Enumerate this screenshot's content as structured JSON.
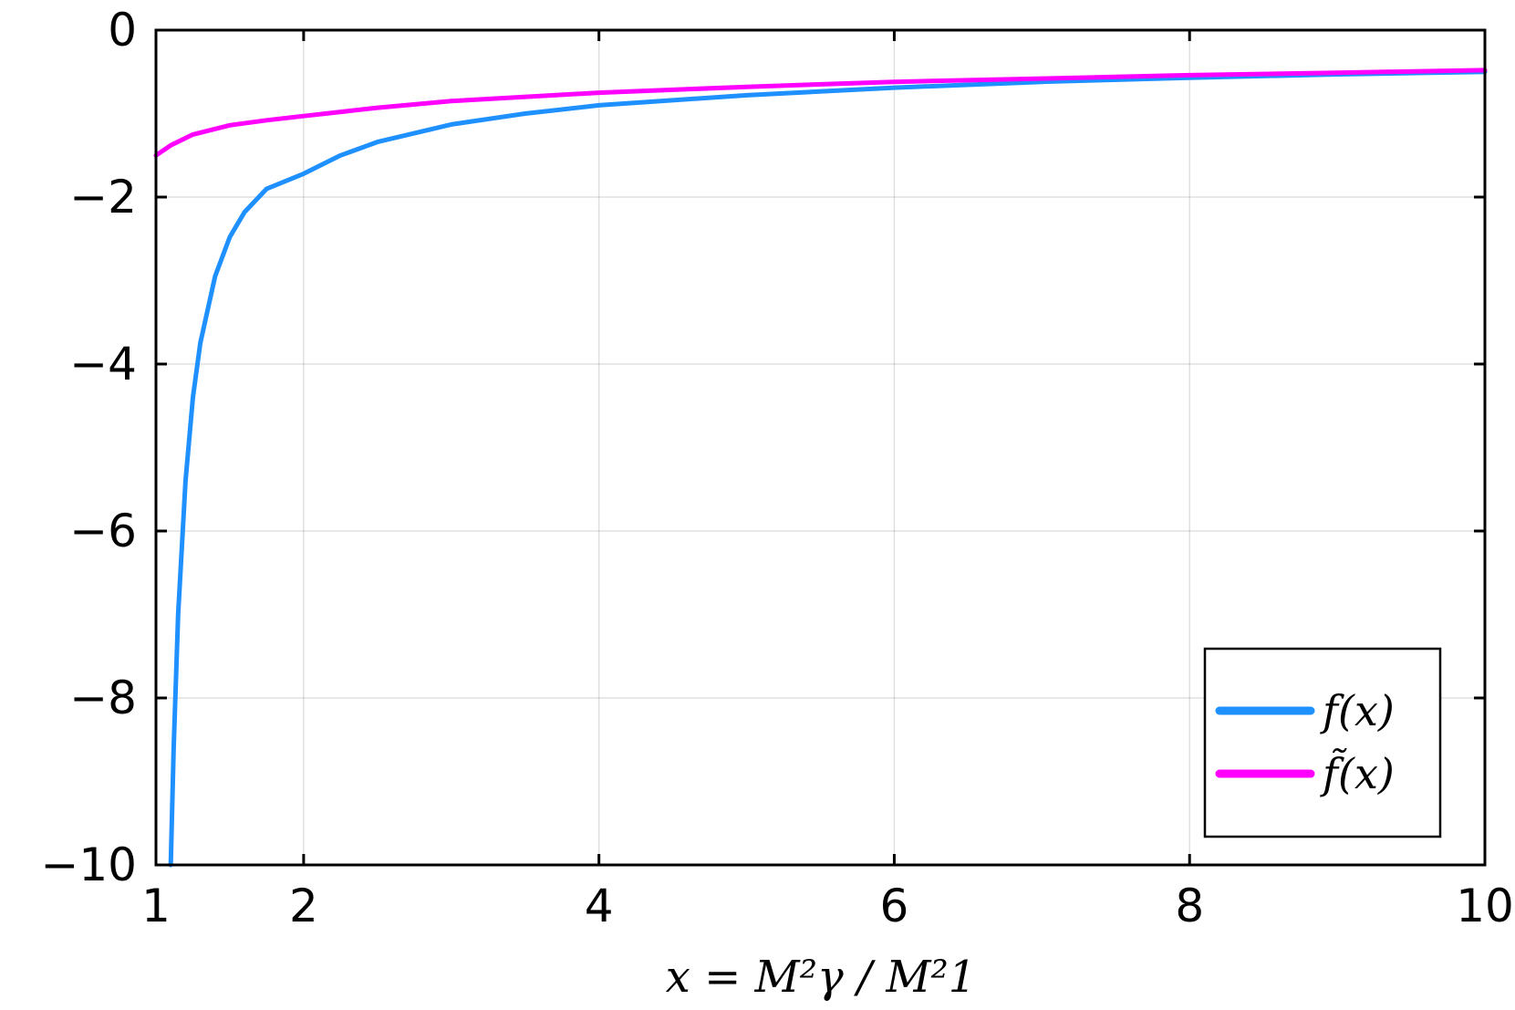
{
  "chart_data": {
    "type": "line",
    "xlabel": "x = M²γ / M²1",
    "xlim": [
      1,
      10
    ],
    "ylim": [
      -10,
      0
    ],
    "xticks": [
      1,
      2,
      4,
      6,
      8,
      10
    ],
    "yticks": [
      0,
      -2,
      -4,
      -6,
      -8,
      -10
    ],
    "xtick_labels": [
      "1",
      "2",
      "4",
      "6",
      "8",
      "10"
    ],
    "ytick_labels": [
      "0",
      "−2",
      "−4",
      "−6",
      "−8",
      "−10"
    ],
    "grid": true,
    "legend_position": "bottom-right",
    "series": [
      {
        "name": "f(x)",
        "color": "#1e90ff",
        "points": [
          [
            1.1,
            -10.0
          ],
          [
            1.12,
            -8.6
          ],
          [
            1.15,
            -7.0
          ],
          [
            1.2,
            -5.4
          ],
          [
            1.25,
            -4.4
          ],
          [
            1.3,
            -3.75
          ],
          [
            1.4,
            -2.95
          ],
          [
            1.5,
            -2.48
          ],
          [
            1.6,
            -2.18
          ],
          [
            1.75,
            -1.9
          ],
          [
            2.0,
            -1.72
          ],
          [
            2.25,
            -1.5
          ],
          [
            2.5,
            -1.34
          ],
          [
            3.0,
            -1.13
          ],
          [
            3.5,
            -1.0
          ],
          [
            4.0,
            -0.9
          ],
          [
            5.0,
            -0.78
          ],
          [
            6.0,
            -0.69
          ],
          [
            7.0,
            -0.62
          ],
          [
            8.0,
            -0.57
          ],
          [
            9.0,
            -0.53
          ],
          [
            10.0,
            -0.5
          ]
        ]
      },
      {
        "name": "f̃(x)",
        "color": "#ff00ff",
        "points": [
          [
            1.0,
            -1.5
          ],
          [
            1.1,
            -1.38
          ],
          [
            1.25,
            -1.25
          ],
          [
            1.5,
            -1.14
          ],
          [
            1.75,
            -1.08
          ],
          [
            2.0,
            -1.03
          ],
          [
            2.5,
            -0.93
          ],
          [
            3.0,
            -0.85
          ],
          [
            4.0,
            -0.75
          ],
          [
            5.0,
            -0.68
          ],
          [
            6.0,
            -0.62
          ],
          [
            7.0,
            -0.58
          ],
          [
            8.0,
            -0.54
          ],
          [
            9.0,
            -0.51
          ],
          [
            10.0,
            -0.48
          ]
        ]
      }
    ]
  }
}
